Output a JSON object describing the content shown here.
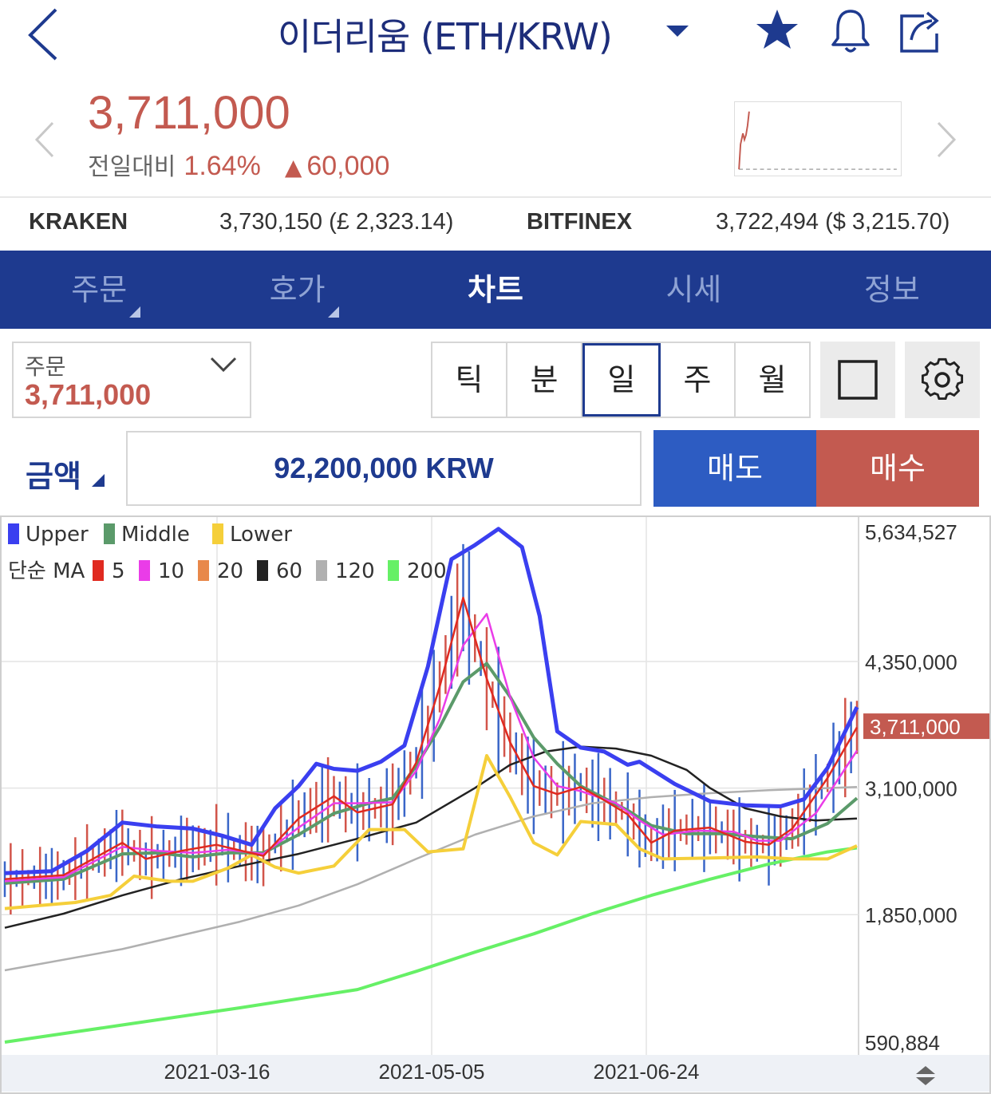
{
  "header": {
    "title": "이더리움 (ETH/KRW)",
    "icons": [
      "back-icon",
      "dropdown-caret-icon",
      "star-icon",
      "bell-icon",
      "share-icon"
    ]
  },
  "quote": {
    "price": "3,711,000",
    "change_label": "전일대비",
    "change_pct": "1.64%",
    "change_arrow": "▲",
    "change_amount": "60,000",
    "colors": {
      "up": "#c35a50"
    }
  },
  "exchanges": [
    {
      "name": "KRAKEN",
      "value": "3,730,150 (£ 2,323.14)"
    },
    {
      "name": "BITFINEX",
      "value": "3,722,494 ($ 3,215.70)"
    }
  ],
  "nav": {
    "tabs": [
      {
        "label": "주문",
        "has_menu": true
      },
      {
        "label": "호가",
        "has_menu": true
      },
      {
        "label": "차트",
        "active": true
      },
      {
        "label": "시세"
      },
      {
        "label": "정보"
      }
    ],
    "color": "#1e3a8f"
  },
  "order": {
    "label": "주문",
    "value": "3,711,000"
  },
  "intervals": [
    {
      "label": "틱"
    },
    {
      "label": "분"
    },
    {
      "label": "일",
      "active": true
    },
    {
      "label": "주"
    },
    {
      "label": "월"
    }
  ],
  "amount": {
    "label": "금액",
    "value": "92,200,000 KRW",
    "sell_label": "매도",
    "buy_label": "매수"
  },
  "chart_data": {
    "type": "line",
    "legend_bb": [
      {
        "name": "Upper",
        "color": "#3a3ff0"
      },
      {
        "name": "Middle",
        "color": "#5b9a6a"
      },
      {
        "name": "Lower",
        "color": "#f5cf3a"
      }
    ],
    "legend_ma_title": "단순 MA",
    "legend_ma": [
      {
        "name": "5",
        "color": "#e02a20"
      },
      {
        "name": "10",
        "color": "#ea3ce8"
      },
      {
        "name": "20",
        "color": "#e8884a"
      },
      {
        "name": "60",
        "color": "#222222"
      },
      {
        "name": "120",
        "color": "#b0b0b0"
      },
      {
        "name": "200",
        "color": "#66f066"
      }
    ],
    "y_ticks": [
      "5,634,527",
      "4,350,000",
      "3,100,000",
      "1,850,000",
      "590,884"
    ],
    "y_tick_values": [
      5634527,
      4350000,
      3100000,
      1850000,
      590884
    ],
    "ylim": [
      590884,
      5634527
    ],
    "x_ticks": [
      "2021-03-16",
      "2021-05-05",
      "2021-06-24"
    ],
    "current_price_label": "3,711,000",
    "current_price": 3711000,
    "series": [
      {
        "name": "Upper",
        "points": [
          [
            0,
            2260000
          ],
          [
            8,
            2280000
          ],
          [
            14,
            2480000
          ],
          [
            20,
            2760000
          ],
          [
            26,
            2720000
          ],
          [
            32,
            2700000
          ],
          [
            37,
            2630000
          ],
          [
            42,
            2540000
          ],
          [
            46,
            2900000
          ],
          [
            50,
            3120000
          ],
          [
            53,
            3340000
          ],
          [
            56,
            3290000
          ],
          [
            60,
            3270000
          ],
          [
            64,
            3360000
          ],
          [
            68,
            3520000
          ],
          [
            72,
            4300000
          ],
          [
            76,
            5360000
          ],
          [
            80,
            5500000
          ],
          [
            84,
            5660000
          ],
          [
            88,
            5480000
          ],
          [
            91,
            4800000
          ],
          [
            94,
            3660000
          ],
          [
            98,
            3500000
          ],
          [
            102,
            3460000
          ],
          [
            106,
            3330000
          ],
          [
            108,
            3360000
          ],
          [
            114,
            3140000
          ],
          [
            120,
            2970000
          ],
          [
            126,
            2930000
          ],
          [
            132,
            2920000
          ],
          [
            136,
            2990000
          ],
          [
            140,
            3300000
          ],
          [
            145,
            3900000
          ]
        ]
      },
      {
        "name": "Middle",
        "points": [
          [
            0,
            2160000
          ],
          [
            10,
            2200000
          ],
          [
            20,
            2450000
          ],
          [
            26,
            2460000
          ],
          [
            32,
            2420000
          ],
          [
            38,
            2460000
          ],
          [
            44,
            2460000
          ],
          [
            50,
            2640000
          ],
          [
            56,
            2850000
          ],
          [
            62,
            2950000
          ],
          [
            66,
            3000000
          ],
          [
            70,
            3320000
          ],
          [
            74,
            3700000
          ],
          [
            78,
            4150000
          ],
          [
            82,
            4330000
          ],
          [
            86,
            4000000
          ],
          [
            90,
            3600000
          ],
          [
            94,
            3340000
          ],
          [
            98,
            3120000
          ],
          [
            102,
            3000000
          ],
          [
            106,
            2880000
          ],
          [
            110,
            2730000
          ],
          [
            116,
            2650000
          ],
          [
            122,
            2650000
          ],
          [
            128,
            2620000
          ],
          [
            134,
            2600000
          ],
          [
            140,
            2750000
          ],
          [
            145,
            3000000
          ]
        ]
      },
      {
        "name": "Lower",
        "points": [
          [
            0,
            1910000
          ],
          [
            6,
            1940000
          ],
          [
            12,
            1970000
          ],
          [
            18,
            2040000
          ],
          [
            22,
            2230000
          ],
          [
            28,
            2180000
          ],
          [
            32,
            2180000
          ],
          [
            38,
            2310000
          ],
          [
            42,
            2440000
          ],
          [
            46,
            2320000
          ],
          [
            50,
            2260000
          ],
          [
            56,
            2330000
          ],
          [
            62,
            2690000
          ],
          [
            68,
            2690000
          ],
          [
            72,
            2470000
          ],
          [
            78,
            2500000
          ],
          [
            82,
            3420000
          ],
          [
            86,
            3010000
          ],
          [
            90,
            2560000
          ],
          [
            94,
            2440000
          ],
          [
            98,
            2770000
          ],
          [
            104,
            2740000
          ],
          [
            108,
            2500000
          ],
          [
            112,
            2400000
          ],
          [
            120,
            2410000
          ],
          [
            128,
            2420000
          ],
          [
            134,
            2400000
          ],
          [
            140,
            2400000
          ],
          [
            145,
            2530000
          ]
        ]
      },
      {
        "name": "5",
        "points": [
          [
            0,
            2200000
          ],
          [
            10,
            2240000
          ],
          [
            20,
            2560000
          ],
          [
            24,
            2400000
          ],
          [
            30,
            2480000
          ],
          [
            36,
            2540000
          ],
          [
            44,
            2430000
          ],
          [
            50,
            2800000
          ],
          [
            56,
            3020000
          ],
          [
            60,
            2860000
          ],
          [
            66,
            2940000
          ],
          [
            70,
            3350000
          ],
          [
            74,
            4100000
          ],
          [
            78,
            4980000
          ],
          [
            82,
            4180000
          ],
          [
            86,
            3550000
          ],
          [
            90,
            3120000
          ],
          [
            94,
            3040000
          ],
          [
            98,
            3110000
          ],
          [
            102,
            2980000
          ],
          [
            106,
            2840000
          ],
          [
            110,
            2560000
          ],
          [
            114,
            2680000
          ],
          [
            120,
            2710000
          ],
          [
            126,
            2570000
          ],
          [
            130,
            2540000
          ],
          [
            134,
            2700000
          ],
          [
            140,
            3200000
          ],
          [
            145,
            3700000
          ]
        ]
      },
      {
        "name": "10",
        "points": [
          [
            0,
            2180000
          ],
          [
            10,
            2220000
          ],
          [
            20,
            2520000
          ],
          [
            26,
            2480000
          ],
          [
            32,
            2460000
          ],
          [
            38,
            2490000
          ],
          [
            44,
            2450000
          ],
          [
            50,
            2710000
          ],
          [
            56,
            2950000
          ],
          [
            60,
            2950000
          ],
          [
            66,
            2960000
          ],
          [
            70,
            3270000
          ],
          [
            74,
            3780000
          ],
          [
            78,
            4510000
          ],
          [
            82,
            4820000
          ],
          [
            86,
            4000000
          ],
          [
            90,
            3400000
          ],
          [
            94,
            3120000
          ],
          [
            98,
            3070000
          ],
          [
            104,
            2950000
          ],
          [
            108,
            2780000
          ],
          [
            112,
            2640000
          ],
          [
            118,
            2680000
          ],
          [
            124,
            2670000
          ],
          [
            128,
            2580000
          ],
          [
            132,
            2580000
          ],
          [
            138,
            2850000
          ],
          [
            145,
            3470000
          ]
        ]
      },
      {
        "name": "20",
        "points": [
          [
            0,
            2160000
          ],
          [
            10,
            2200000
          ],
          [
            20,
            2450000
          ],
          [
            26,
            2460000
          ],
          [
            32,
            2420000
          ],
          [
            38,
            2460000
          ],
          [
            44,
            2460000
          ],
          [
            50,
            2640000
          ],
          [
            56,
            2850000
          ],
          [
            62,
            2950000
          ],
          [
            66,
            3000000
          ],
          [
            70,
            3320000
          ],
          [
            74,
            3700000
          ],
          [
            78,
            4150000
          ],
          [
            82,
            4330000
          ],
          [
            86,
            4000000
          ],
          [
            90,
            3600000
          ],
          [
            94,
            3340000
          ],
          [
            98,
            3120000
          ],
          [
            102,
            3000000
          ],
          [
            106,
            2880000
          ],
          [
            110,
            2730000
          ],
          [
            116,
            2650000
          ],
          [
            122,
            2650000
          ],
          [
            128,
            2620000
          ],
          [
            134,
            2600000
          ],
          [
            140,
            2750000
          ],
          [
            145,
            3000000
          ]
        ]
      },
      {
        "name": "60",
        "points": [
          [
            0,
            1720000
          ],
          [
            10,
            1860000
          ],
          [
            20,
            2040000
          ],
          [
            30,
            2200000
          ],
          [
            40,
            2330000
          ],
          [
            50,
            2450000
          ],
          [
            60,
            2600000
          ],
          [
            70,
            2760000
          ],
          [
            80,
            3100000
          ],
          [
            86,
            3330000
          ],
          [
            92,
            3460000
          ],
          [
            98,
            3510000
          ],
          [
            104,
            3490000
          ],
          [
            110,
            3420000
          ],
          [
            116,
            3280000
          ],
          [
            120,
            3100000
          ],
          [
            126,
            2900000
          ],
          [
            132,
            2820000
          ],
          [
            138,
            2780000
          ],
          [
            145,
            2800000
          ]
        ]
      },
      {
        "name": "120",
        "points": [
          [
            0,
            1300000
          ],
          [
            20,
            1510000
          ],
          [
            40,
            1780000
          ],
          [
            50,
            1940000
          ],
          [
            60,
            2150000
          ],
          [
            70,
            2400000
          ],
          [
            80,
            2640000
          ],
          [
            90,
            2820000
          ],
          [
            100,
            2950000
          ],
          [
            110,
            3010000
          ],
          [
            120,
            3050000
          ],
          [
            130,
            3080000
          ],
          [
            140,
            3100000
          ],
          [
            145,
            3110000
          ]
        ]
      },
      {
        "name": "200",
        "points": [
          [
            0,
            590884
          ],
          [
            20,
            760000
          ],
          [
            40,
            930000
          ],
          [
            60,
            1110000
          ],
          [
            70,
            1290000
          ],
          [
            80,
            1480000
          ],
          [
            90,
            1660000
          ],
          [
            100,
            1860000
          ],
          [
            110,
            2040000
          ],
          [
            120,
            2200000
          ],
          [
            130,
            2350000
          ],
          [
            140,
            2470000
          ],
          [
            145,
            2510000
          ]
        ]
      }
    ]
  }
}
